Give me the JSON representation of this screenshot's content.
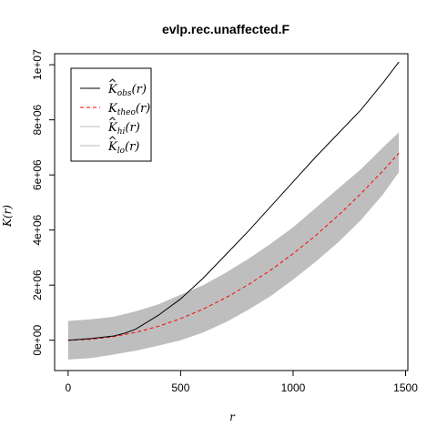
{
  "chart_data": {
    "type": "line",
    "title": "evlp.rec.unaffected.F",
    "xlabel": "r",
    "ylabel": "K(r)",
    "xlim": [
      -60,
      1510
    ],
    "ylim": [
      -1100000,
      10400000
    ],
    "x_ticks": [
      0,
      500,
      1000,
      1500
    ],
    "x_tick_labels": [
      "0",
      "500",
      "1000",
      "1500"
    ],
    "y_ticks": [
      0,
      2000000,
      4000000,
      6000000,
      8000000,
      10000000
    ],
    "y_tick_labels": [
      "0e+00",
      "2e+06",
      "4e+06",
      "6e+06",
      "8e+06",
      "1e+07"
    ],
    "grid": false,
    "legend_position": "top-left",
    "colors": {
      "obs": "#000000",
      "theo": "#ff0000",
      "envelope": "#bebebe"
    },
    "legend": [
      {
        "base": "K",
        "hat": true,
        "sub": "obs",
        "arg": "(r)",
        "style": "solid",
        "color": "#000000"
      },
      {
        "base": "K",
        "hat": false,
        "sub": "theo",
        "arg": "(r)",
        "style": "dashed",
        "color": "#ff0000"
      },
      {
        "base": "K",
        "hat": true,
        "sub": "hi",
        "arg": "(r)",
        "style": "solid",
        "color": "#bebebe"
      },
      {
        "base": "K",
        "hat": true,
        "sub": "lo",
        "arg": "(r)",
        "style": "solid",
        "color": "#bebebe"
      }
    ],
    "series": [
      {
        "name": "obs",
        "x": [
          0,
          100,
          200,
          250,
          300,
          400,
          500,
          600,
          700,
          800,
          900,
          1000,
          1100,
          1200,
          1300,
          1400,
          1470
        ],
        "y": [
          0,
          60000,
          150000,
          250000,
          400000,
          900000,
          1500000,
          2250000,
          3100000,
          3950000,
          4850000,
          5750000,
          6650000,
          7500000,
          8350000,
          9350000,
          10100000
        ]
      },
      {
        "name": "theo",
        "x": [
          0,
          100,
          200,
          300,
          400,
          500,
          600,
          700,
          800,
          900,
          1000,
          1100,
          1200,
          1300,
          1400,
          1470
        ],
        "y": [
          0,
          31000,
          126000,
          283000,
          503000,
          785000,
          1131000,
          1539000,
          2011000,
          2545000,
          3142000,
          3801000,
          4524000,
          5309000,
          6158000,
          6788000
        ]
      },
      {
        "name": "hi",
        "x": [
          0,
          100,
          200,
          300,
          400,
          500,
          600,
          700,
          800,
          900,
          1000,
          1100,
          1200,
          1300,
          1400,
          1470
        ],
        "y": [
          700000,
          760000,
          850000,
          1050000,
          1300000,
          1650000,
          2000000,
          2450000,
          2950000,
          3500000,
          4100000,
          4800000,
          5500000,
          6200000,
          7000000,
          7550000
        ]
      },
      {
        "name": "lo",
        "x": [
          0,
          100,
          200,
          300,
          400,
          500,
          600,
          700,
          800,
          900,
          1000,
          1100,
          1200,
          1300,
          1400,
          1470
        ],
        "y": [
          -700000,
          -650000,
          -520000,
          -380000,
          -200000,
          0,
          280000,
          650000,
          1100000,
          1600000,
          2200000,
          2850000,
          3550000,
          4350000,
          5300000,
          6100000
        ]
      }
    ]
  }
}
